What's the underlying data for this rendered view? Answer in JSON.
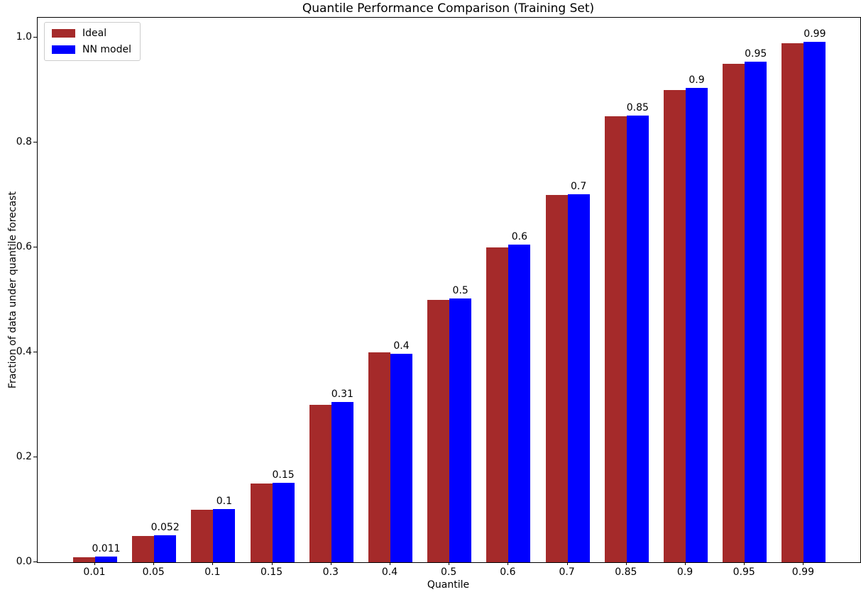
{
  "chart_data": {
    "type": "bar",
    "title": "Quantile Performance Comparison (Training Set)",
    "xlabel": "Quantile",
    "ylabel": "Fraction of data under quantile forecast",
    "categories": [
      "0.01",
      "0.05",
      "0.1",
      "0.15",
      "0.3",
      "0.4",
      "0.5",
      "0.6",
      "0.7",
      "0.85",
      "0.9",
      "0.95",
      "0.99"
    ],
    "series": [
      {
        "name": "Ideal",
        "color": "#a52a2a",
        "values": [
          0.01,
          0.05,
          0.1,
          0.15,
          0.3,
          0.4,
          0.5,
          0.6,
          0.7,
          0.85,
          0.9,
          0.95,
          0.99
        ]
      },
      {
        "name": "NN model",
        "color": "#0000ff",
        "values": [
          0.011,
          0.052,
          0.102,
          0.152,
          0.306,
          0.398,
          0.503,
          0.605,
          0.701,
          0.852,
          0.904,
          0.954,
          0.992
        ]
      }
    ],
    "bar_labels": [
      "0.011",
      "0.052",
      "0.1",
      "0.15",
      "0.31",
      "0.4",
      "0.5",
      "0.6",
      "0.7",
      "0.85",
      "0.9",
      "0.95",
      "0.99"
    ],
    "bar_labels_on_series": "NN model",
    "yticks": [
      0.0,
      0.2,
      0.4,
      0.6,
      0.8,
      1.0
    ],
    "ytick_labels": [
      "0.0",
      "0.2",
      "0.4",
      "0.6",
      "0.8",
      "1.0"
    ],
    "ylim": [
      0,
      1.038
    ],
    "grid": false,
    "legend_position": "upper left",
    "background": "#ffffff"
  }
}
